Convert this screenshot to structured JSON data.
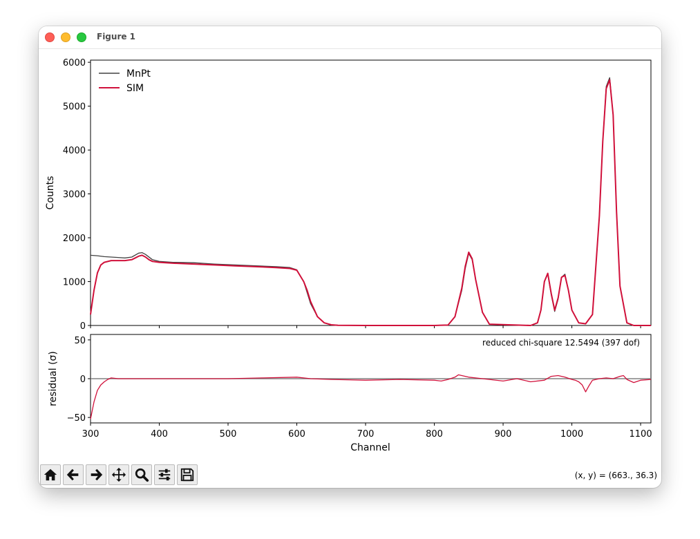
{
  "window": {
    "title": "Figure 1"
  },
  "toolbar": {
    "buttons": [
      "home-icon",
      "back-icon",
      "forward-icon",
      "pan-icon",
      "zoom-icon",
      "configure-subplots-icon",
      "save-icon"
    ],
    "coords_text": "(x, y) = (663., 36.3)"
  },
  "colors": {
    "data_line": "#404040",
    "sim_line": "#d0103a",
    "zero_line": "#808080"
  },
  "chart_data": [
    {
      "type": "line",
      "title": "",
      "xlabel": "",
      "ylabel": "Counts",
      "xlim": [
        300,
        1115
      ],
      "ylim": [
        0,
        6050
      ],
      "yticks": [
        0,
        1000,
        2000,
        3000,
        4000,
        5000,
        6000
      ],
      "ytick_labels": [
        "0",
        "1000",
        "2000",
        "3000",
        "4000",
        "5000",
        "6000"
      ],
      "legend_position": "upper-left",
      "series": [
        {
          "name": "MnPt",
          "color": "#404040",
          "x": [
            300,
            310,
            320,
            330,
            340,
            350,
            360,
            370,
            375,
            380,
            390,
            400,
            420,
            450,
            480,
            510,
            540,
            570,
            590,
            600,
            610,
            620,
            630,
            640,
            650,
            660,
            700,
            800,
            820,
            830,
            840,
            845,
            850,
            855,
            860,
            870,
            880,
            940,
            950,
            955,
            960,
            965,
            970,
            975,
            980,
            985,
            990,
            995,
            1000,
            1010,
            1020,
            1030,
            1040,
            1045,
            1050,
            1055,
            1060,
            1065,
            1070,
            1080,
            1090,
            1115
          ],
          "y": [
            1600,
            1590,
            1570,
            1560,
            1550,
            1540,
            1560,
            1650,
            1660,
            1620,
            1500,
            1460,
            1440,
            1430,
            1400,
            1380,
            1360,
            1340,
            1320,
            1270,
            1000,
            500,
            200,
            60,
            15,
            5,
            0,
            0,
            10,
            200,
            800,
            1300,
            1640,
            1500,
            1050,
            300,
            30,
            0,
            60,
            350,
            1000,
            1170,
            700,
            320,
            600,
            1100,
            1170,
            800,
            350,
            60,
            40,
            250,
            2500,
            4200,
            5450,
            5650,
            4800,
            2600,
            900,
            60,
            0,
            0
          ]
        },
        {
          "name": "SIM",
          "color": "#d0103a",
          "x": [
            300,
            305,
            310,
            315,
            320,
            330,
            340,
            350,
            360,
            365,
            370,
            375,
            380,
            385,
            390,
            400,
            420,
            450,
            480,
            510,
            540,
            570,
            590,
            600,
            610,
            615,
            620,
            630,
            640,
            650,
            660,
            700,
            800,
            820,
            830,
            840,
            845,
            850,
            855,
            860,
            870,
            880,
            940,
            950,
            955,
            960,
            965,
            970,
            975,
            980,
            985,
            990,
            995,
            1000,
            1010,
            1020,
            1030,
            1040,
            1045,
            1050,
            1055,
            1060,
            1065,
            1070,
            1080,
            1090,
            1115
          ],
          "y": [
            250,
            800,
            1200,
            1380,
            1440,
            1480,
            1480,
            1480,
            1500,
            1540,
            1580,
            1600,
            1560,
            1500,
            1460,
            1440,
            1420,
            1400,
            1380,
            1360,
            1340,
            1320,
            1300,
            1260,
            1000,
            800,
            550,
            200,
            60,
            15,
            5,
            0,
            0,
            10,
            200,
            850,
            1350,
            1670,
            1520,
            1050,
            300,
            30,
            0,
            60,
            350,
            1000,
            1190,
            730,
            350,
            630,
            1100,
            1140,
            800,
            350,
            60,
            40,
            250,
            2500,
            4200,
            5400,
            5600,
            4800,
            2600,
            900,
            60,
            0,
            0
          ]
        }
      ]
    },
    {
      "type": "line",
      "title": "",
      "xlabel": "Channel",
      "ylabel": "residual (σ)",
      "xlim": [
        300,
        1115
      ],
      "ylim": [
        -57,
        57
      ],
      "xticks": [
        300,
        400,
        500,
        600,
        700,
        800,
        900,
        1000,
        1100
      ],
      "xtick_labels": [
        "300",
        "400",
        "500",
        "600",
        "700",
        "800",
        "900",
        "1000",
        "1100"
      ],
      "yticks": [
        -50,
        0,
        50
      ],
      "ytick_labels": [
        "−50",
        "0",
        "50"
      ],
      "annotation": "reduced chi-square 12.5494 (397 dof)",
      "series": [
        {
          "name": "",
          "color": "#d0103a",
          "x": [
            300,
            305,
            310,
            315,
            320,
            325,
            330,
            340,
            350,
            400,
            450,
            500,
            550,
            600,
            610,
            620,
            650,
            700,
            750,
            800,
            810,
            820,
            830,
            835,
            840,
            850,
            860,
            880,
            900,
            920,
            940,
            960,
            970,
            980,
            990,
            1000,
            1005,
            1010,
            1015,
            1020,
            1025,
            1030,
            1040,
            1050,
            1060,
            1070,
            1075,
            1080,
            1090,
            1100,
            1115
          ],
          "y": [
            -52,
            -30,
            -15,
            -8,
            -4,
            -1,
            1,
            0,
            0,
            0,
            0,
            0,
            1,
            2,
            1,
            0,
            -1,
            -2,
            -1,
            -2,
            -3,
            -1,
            2,
            5,
            4,
            2,
            1,
            -1,
            -3,
            0,
            -4,
            -2,
            3,
            4,
            2,
            -1,
            -2,
            -4,
            -8,
            -17,
            -9,
            -2,
            0,
            1,
            0,
            3,
            4,
            -1,
            -5,
            -2,
            -1
          ]
        }
      ]
    }
  ]
}
